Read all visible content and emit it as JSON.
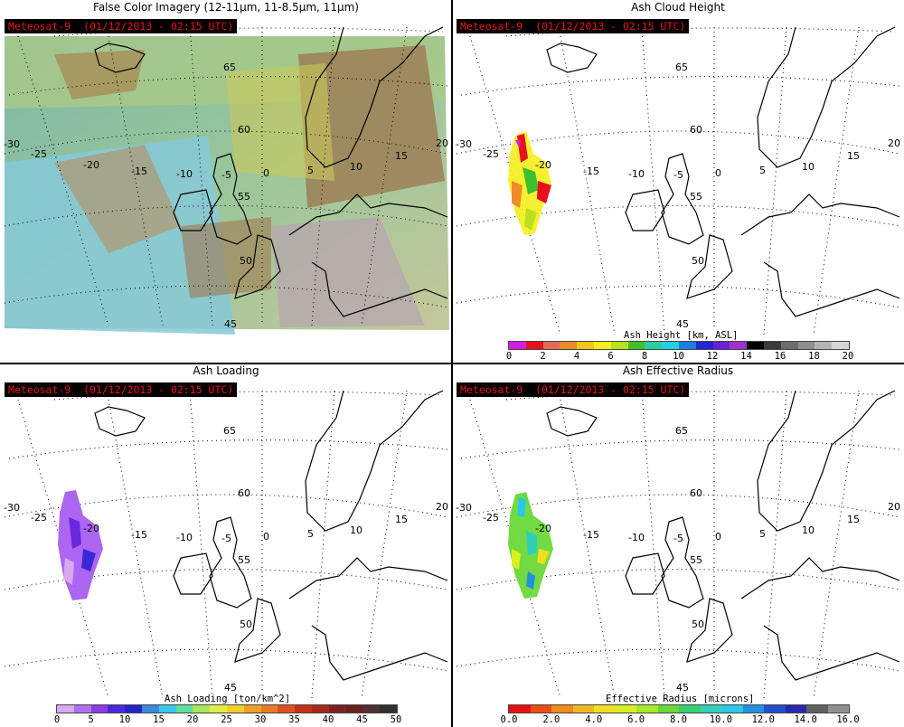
{
  "panels": {
    "tl": {
      "title": "False Color Imagery (12-11μm, 11-8.5μm, 11μm)",
      "stamp": "Meteosat-9  (01/12/2013 - 02:15 UTC)"
    },
    "tr": {
      "title": "Ash Cloud Height",
      "stamp": "Meteosat-9  (01/12/2013 - 02:15 UTC)",
      "colorbar_title": "Ash Height [km, ASL]",
      "ticks": [
        "0",
        "2",
        "4",
        "6",
        "8",
        "10",
        "12",
        "14",
        "16",
        "18",
        "20"
      ],
      "colors": [
        "#d21ee0",
        "#e8101a",
        "#e26b5a",
        "#f08a2a",
        "#f7c51b",
        "#f4f01c",
        "#b9e21c",
        "#3fbf2a",
        "#27d0a0",
        "#23d0e0",
        "#1a7fe0",
        "#2424d8",
        "#6a1fd8",
        "#a22fd0",
        "#000000",
        "#3a3a3a",
        "#6c6c6c",
        "#8e8e8e",
        "#b4b4b4",
        "#d6d6d6"
      ]
    },
    "bl": {
      "title": "Ash Loading",
      "stamp": "Meteosat-9  (01/12/2013 - 02:15 UTC)",
      "colorbar_title": "Ash Loading [ton/km^2]",
      "ticks": [
        "0",
        "5",
        "10",
        "15",
        "20",
        "25",
        "30",
        "35",
        "40",
        "45",
        "50"
      ],
      "colors": [
        "#d9a8f0",
        "#b070f0",
        "#8a3ae8",
        "#4a28e0",
        "#2424c8",
        "#3a8ae0",
        "#38c8e8",
        "#5ee0a0",
        "#a8e85a",
        "#e0f040",
        "#f0d028",
        "#f0a020",
        "#e87a20",
        "#e05020",
        "#c83018",
        "#a82818",
        "#802020",
        "#6a2020",
        "#503030",
        "#303030"
      ]
    },
    "br": {
      "title": "Ash Effective Radius",
      "stamp": "Meteosat-9  (01/12/2013 - 02:15 UTC)",
      "colorbar_title": "Effective Radius [microns]",
      "ticks": [
        "0.0",
        "2.0",
        "4.0",
        "6.0",
        "8.0",
        "10.0",
        "12.0",
        "14.0",
        "16.0"
      ],
      "colors": [
        "#e81010",
        "#f04a10",
        "#f08a18",
        "#f0b820",
        "#f0e020",
        "#d8f020",
        "#a8e828",
        "#6ad838",
        "#38d070",
        "#30d0b8",
        "#28c8e8",
        "#2090e0",
        "#2050d0",
        "#2828b0",
        "#606060",
        "#909090"
      ]
    }
  },
  "map_labels": {
    "lat": [
      "65",
      "60",
      "55",
      "50",
      "45"
    ],
    "lon": [
      "-30",
      "-25",
      "-20",
      "-15",
      "-10",
      "-5",
      "0",
      "5",
      "10",
      "15",
      "20"
    ]
  },
  "colors": {
    "stamp_text": "#e8121a",
    "stamp_bg": "#000000",
    "coast": "#000000"
  }
}
